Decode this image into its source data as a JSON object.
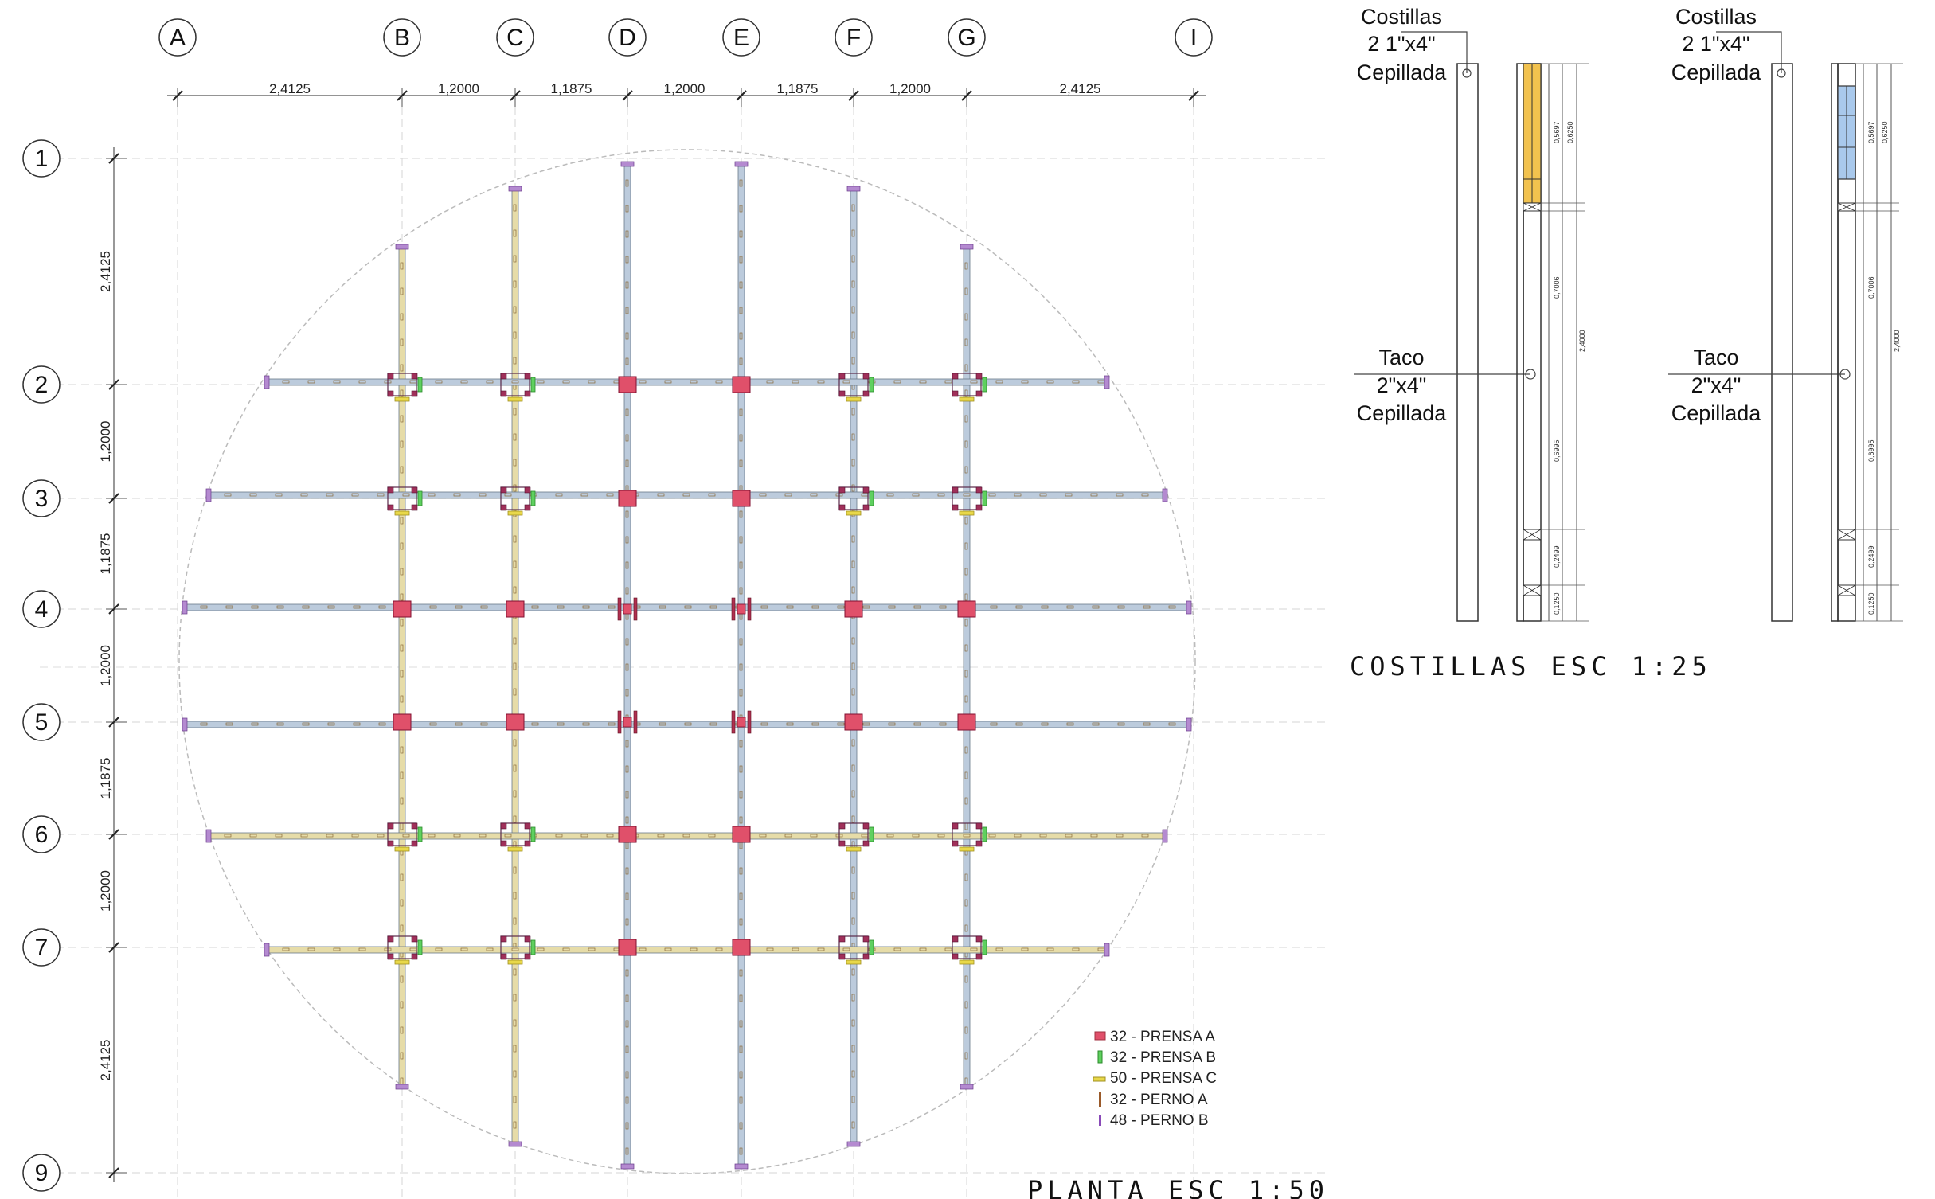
{
  "plan": {
    "title": "PLANTA ESC 1:50",
    "columns": [
      "A",
      "B",
      "C",
      "D",
      "E",
      "F",
      "G",
      "I"
    ],
    "rows": [
      "1",
      "2",
      "3",
      "4",
      "5",
      "6",
      "7",
      "9"
    ],
    "col_spacings": [
      "2,4125",
      "1,2000",
      "1,1875",
      "1,2000",
      "1,1875",
      "1,2000",
      "2,4125"
    ],
    "row_spacings": [
      "2,4125",
      "1,2000",
      "1,1875",
      "1,2000",
      "1,1875",
      "1,2000",
      "2,4125"
    ]
  },
  "legend": {
    "items": [
      {
        "label": "32 - PRENSA A",
        "color": "#e0506a"
      },
      {
        "label": "32 - PRENSA B",
        "color": "#5fd05f"
      },
      {
        "label": "50 - PRENSA C",
        "color": "#e8d84a"
      },
      {
        "label": "32 - PERNO A",
        "color": "#9a5a2a"
      },
      {
        "label": "48 - PERNO B",
        "color": "#8a4ab8"
      }
    ]
  },
  "ribs": {
    "title": "COSTILLAS ESC 1:25",
    "details": [
      {
        "rib_label": [
          "Costillas",
          "2 1\"x4\"",
          "Cepillada"
        ],
        "block_label": [
          "Taco",
          "2\"x4\"",
          "Cepillada"
        ],
        "accent": "#f2c24e"
      },
      {
        "rib_label": [
          "Costillas",
          "2 1\"x4\"",
          "Cepillada"
        ],
        "block_label": [
          "Taco",
          "2\"x4\"",
          "Cepillada"
        ],
        "accent": "#a9c9ec"
      }
    ],
    "dims": [
      "0,5697",
      "0,6250",
      "0,7006",
      "2,4000",
      "0,6995",
      "0,2499",
      "0,1250"
    ]
  },
  "colors": {
    "blue_member": "#bccbdc",
    "yellow_member": "#e6dca8",
    "clamp_a": "#e0506a",
    "line": "#555555"
  }
}
